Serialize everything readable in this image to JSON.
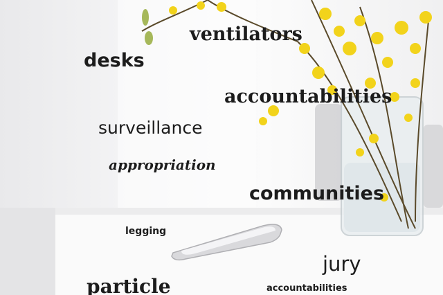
{
  "words": {
    "ventilators": "ventilators",
    "desks": "desks",
    "accountabilities_large": "accountabilities",
    "surveillance": "surveillance",
    "appropriation": "appropriation",
    "communities": "communities",
    "legging": "legging",
    "jury": "jury",
    "particle": "particle",
    "accountabilities_small": "accountabilities"
  },
  "colors": {
    "text": "#1c1c1c",
    "flowers": "#f2d31b",
    "stems": "#5a4a2a",
    "table": "#fafafa",
    "background": "#f0f0f1"
  }
}
